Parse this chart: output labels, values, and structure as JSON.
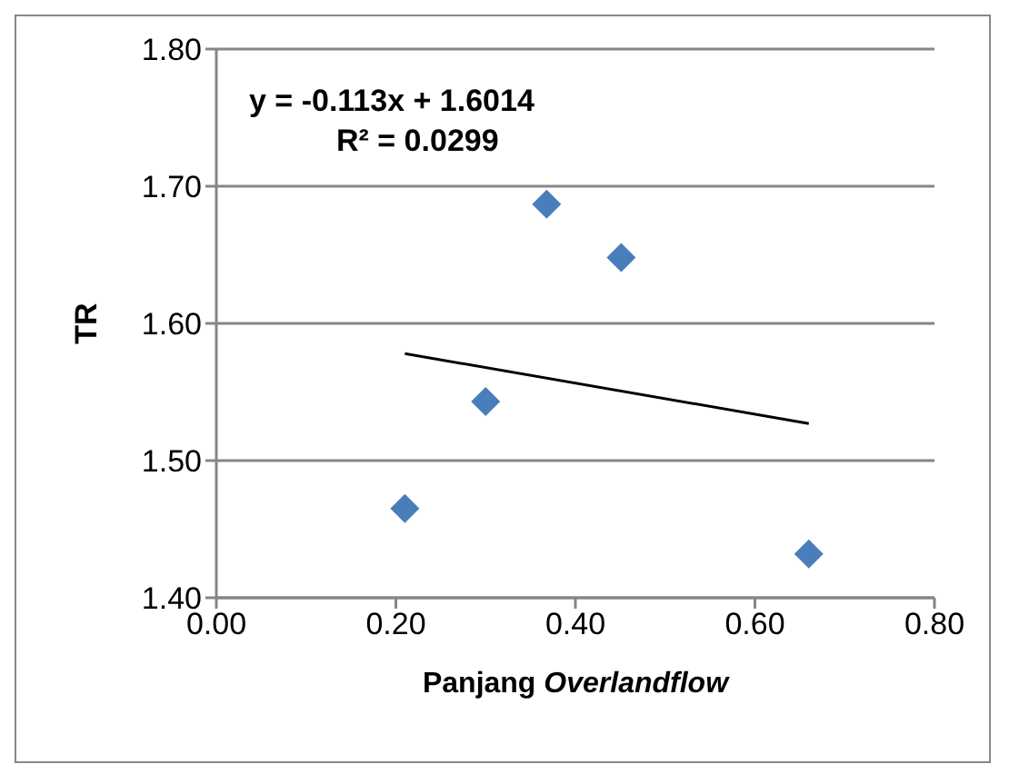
{
  "chart_data": {
    "type": "scatter",
    "xlabel": "Panjang Overlandflow",
    "ylabel": "TR",
    "annotations": [
      "y = -0.113x + 1.6014",
      "R² = 0.0299"
    ],
    "series": [
      {
        "type": "scatter",
        "color": "#4a7ebb",
        "marker": "diamond",
        "x": [
          0.21,
          0.3,
          0.368,
          0.451,
          0.66
        ],
        "values": [
          1.465,
          1.543,
          1.687,
          1.648,
          1.432
        ]
      },
      {
        "type": "line",
        "color": "#000000",
        "marker": "none",
        "x": [
          0.21,
          0.66
        ],
        "values": [
          1.578,
          1.527
        ]
      }
    ],
    "xlim": [
      0,
      0.8
    ],
    "xticks": [
      {
        "value": 0,
        "label": "0.00"
      },
      {
        "value": 0.2,
        "label": "0.20"
      },
      {
        "value": 0.4,
        "label": "0.40"
      },
      {
        "value": 0.6,
        "label": "0.60"
      },
      {
        "value": 0.8,
        "label": "0.80"
      }
    ],
    "ylim": [
      1.4,
      1.8
    ],
    "yticks": [
      {
        "value": 1.4,
        "label": "1.40"
      },
      {
        "value": 1.5,
        "label": "1.50"
      },
      {
        "value": 1.6,
        "label": "1.60"
      },
      {
        "value": 1.7,
        "label": "1.70"
      },
      {
        "value": 1.8,
        "label": "1.80"
      }
    ],
    "grid": "y",
    "legend": false
  }
}
